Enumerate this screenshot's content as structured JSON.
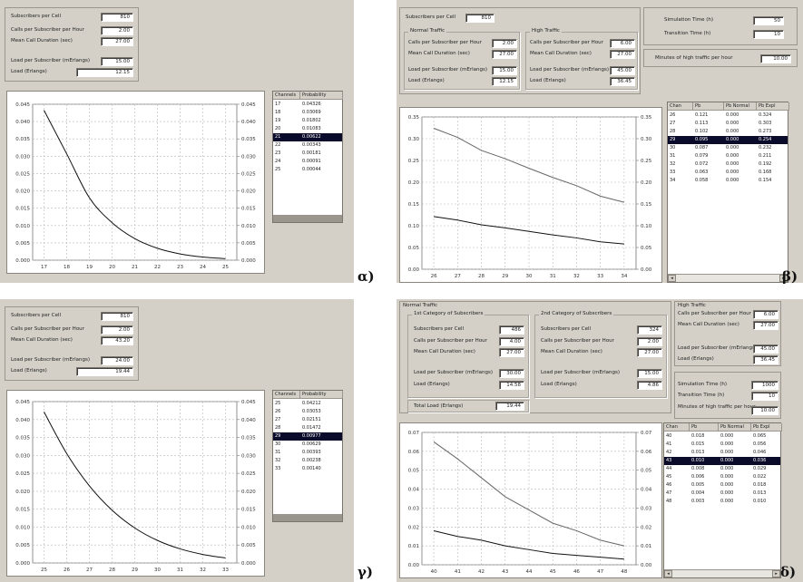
{
  "panels": {
    "a": {
      "label": "α)",
      "fields": [
        {
          "label": "Subscribers per Cell",
          "value": "810"
        },
        {
          "label": "Calls per Subscriber per Hour",
          "value": "2.00"
        },
        {
          "label": "Mean Call Duration (sec)",
          "value": "27.00"
        },
        {
          "label": "Load per Subscriber (mErlangs)",
          "value": "15.00"
        },
        {
          "label": "Load (Erlangs)",
          "value": "12.15"
        }
      ],
      "table": {
        "headers": [
          "Channels",
          "Probability"
        ],
        "rows": [
          [
            "17",
            "0.04326"
          ],
          [
            "18",
            "0.03069"
          ],
          [
            "19",
            "0.01802"
          ],
          [
            "20",
            "0.01083"
          ],
          [
            "21",
            "0.00622"
          ],
          [
            "22",
            "0.00343"
          ],
          [
            "23",
            "0.00181"
          ],
          [
            "24",
            "0.00091"
          ],
          [
            "25",
            "0.00044"
          ]
        ],
        "selected": 4
      },
      "chart_data": {
        "type": "line",
        "x": [
          17,
          18,
          19,
          20,
          21,
          22,
          23,
          24,
          25
        ],
        "series": [
          {
            "values": [
              0.04326,
              0.03069,
              0.01802,
              0.01083,
              0.00622,
              0.00343,
              0.00181,
              0.00091,
              0.00044
            ]
          }
        ],
        "xticks": [
          "17",
          "18",
          "19",
          "20",
          "21",
          "22",
          "23",
          "24",
          "25"
        ],
        "yticks": [
          "0.000",
          "0.005",
          "0.010",
          "0.015",
          "0.020",
          "0.025",
          "0.030",
          "0.035",
          "0.040",
          "0.045"
        ],
        "xlim": [
          16.5,
          25.5
        ],
        "ylim": [
          0,
          0.045
        ],
        "grid": true
      }
    },
    "b": {
      "label": "β)",
      "subscribers": {
        "label": "Subscribers per Cell",
        "value": "810"
      },
      "normal_title": "Normal Traffic",
      "normal": [
        {
          "label": "Calls per Subscriber per Hour",
          "value": "2.00"
        },
        {
          "label": "Mean Call Duration (sec)",
          "value": "27.00"
        },
        {
          "label": "Load per Subscriber (mErlangs)",
          "value": "15.00"
        },
        {
          "label": "Load (Erlangs)",
          "value": "12.15"
        }
      ],
      "high_title": "High Traffic",
      "high": [
        {
          "label": "Calls per Subscriber per Hour",
          "value": "6.00"
        },
        {
          "label": "Mean Call Duration (sec)",
          "value": "27.00"
        },
        {
          "label": "Load per Subscriber (mErlangs)",
          "value": "45.00"
        },
        {
          "label": "Load (Erlangs)",
          "value": "36.45"
        }
      ],
      "sim": [
        {
          "label": "Simulation Time (h)",
          "value": "50"
        },
        {
          "label": "Transition Time (h)",
          "value": "10"
        },
        {
          "label": "Minutes of high traffic per hour",
          "value": "10.00"
        }
      ],
      "table": {
        "headers": [
          "Chan",
          "Pb",
          "Pb Normal",
          "Pb Expl"
        ],
        "rows": [
          [
            "26",
            "0.121",
            "0.000",
            "0.324"
          ],
          [
            "27",
            "0.113",
            "0.000",
            "0.303"
          ],
          [
            "28",
            "0.102",
            "0.000",
            "0.273"
          ],
          [
            "29",
            "0.095",
            "0.000",
            "0.254"
          ],
          [
            "30",
            "0.087",
            "0.000",
            "0.232"
          ],
          [
            "31",
            "0.079",
            "0.000",
            "0.211"
          ],
          [
            "32",
            "0.072",
            "0.000",
            "0.192"
          ],
          [
            "33",
            "0.063",
            "0.000",
            "0.168"
          ],
          [
            "34",
            "0.058",
            "0.000",
            "0.154"
          ]
        ],
        "selected": 3
      },
      "chart_data": {
        "type": "line",
        "x": [
          26,
          27,
          28,
          29,
          30,
          31,
          32,
          33,
          34
        ],
        "series": [
          {
            "values": [
              0.324,
              0.303,
              0.273,
              0.254,
              0.232,
              0.211,
              0.192,
              0.168,
              0.154
            ]
          },
          {
            "values": [
              0.121,
              0.113,
              0.102,
              0.095,
              0.087,
              0.079,
              0.072,
              0.063,
              0.058
            ]
          }
        ],
        "xticks": [
          "26",
          "27",
          "28",
          "29",
          "30",
          "31",
          "32",
          "33",
          "34"
        ],
        "yticks": [
          "0.00",
          "0.05",
          "0.10",
          "0.15",
          "0.20",
          "0.25",
          "0.30",
          "0.35"
        ],
        "xlim": [
          25.5,
          34.5
        ],
        "ylim": [
          0,
          0.35
        ],
        "grid": true
      }
    },
    "c": {
      "label": "γ)",
      "fields": [
        {
          "label": "Subscribers per Cell",
          "value": "810"
        },
        {
          "label": "Calls per Subscriber per Hour",
          "value": "2.00"
        },
        {
          "label": "Mean Call Duration (sec)",
          "value": "43.20"
        },
        {
          "label": "Load per Subscriber (mErlangs)",
          "value": "24.00"
        },
        {
          "label": "Load (Erlangs)",
          "value": "19.44"
        }
      ],
      "table": {
        "headers": [
          "Channels",
          "Probability"
        ],
        "rows": [
          [
            "25",
            "0.04212"
          ],
          [
            "26",
            "0.03053"
          ],
          [
            "27",
            "0.02151"
          ],
          [
            "28",
            "0.01472"
          ],
          [
            "29",
            "0.00977"
          ],
          [
            "30",
            "0.00629"
          ],
          [
            "31",
            "0.00393"
          ],
          [
            "32",
            "0.00238"
          ],
          [
            "33",
            "0.00140"
          ]
        ],
        "selected": 4
      },
      "chart_data": {
        "type": "line",
        "x": [
          25,
          26,
          27,
          28,
          29,
          30,
          31,
          32,
          33
        ],
        "series": [
          {
            "values": [
              0.04212,
              0.03053,
              0.02151,
              0.01472,
              0.00977,
              0.00629,
              0.00393,
              0.00238,
              0.0014
            ]
          }
        ],
        "xticks": [
          "25",
          "26",
          "27",
          "28",
          "29",
          "30",
          "31",
          "32",
          "33"
        ],
        "yticks": [
          "0.000",
          "0.005",
          "0.010",
          "0.015",
          "0.020",
          "0.025",
          "0.030",
          "0.035",
          "0.040",
          "0.045"
        ],
        "xlim": [
          24.5,
          33.5
        ],
        "ylim": [
          0,
          0.045
        ],
        "grid": true
      }
    },
    "d": {
      "label": "δ)",
      "normal_title": "Normal Traffic",
      "cat1_title": "1st Category of Subscribers",
      "cat1": [
        {
          "label": "Subscribers per Cell",
          "value": "486"
        },
        {
          "label": "Calls per Subscriber per Hour",
          "value": "4.00"
        },
        {
          "label": "Mean Call Duration (sec)",
          "value": "27.00"
        },
        {
          "label": "Load per Subscriber (mErlangs)",
          "value": "30.00"
        },
        {
          "label": "Load (Erlangs)",
          "value": "14.58"
        }
      ],
      "cat2_title": "2nd Category of Subscribers",
      "cat2": [
        {
          "label": "Subscribers per Cell",
          "value": "324"
        },
        {
          "label": "Calls per Subscriber per Hour",
          "value": "2.00"
        },
        {
          "label": "Mean Call Duration (sec)",
          "value": "27.00"
        },
        {
          "label": "Load per Subscriber (mErlangs)",
          "value": "15.00"
        },
        {
          "label": "Load (Erlangs)",
          "value": "4.86"
        }
      ],
      "total": {
        "label": "Total Load (Erlangs)",
        "value": "19.44"
      },
      "high_title": "High Traffic",
      "high": [
        {
          "label": "Calls per Subscriber per Hour",
          "value": "6.00"
        },
        {
          "label": "Mean Call Duration (sec)",
          "value": "27.00"
        },
        {
          "label": "Load per Subscriber (mErlangs)",
          "value": "45.00"
        },
        {
          "label": "Load (Erlangs)",
          "value": "36.45"
        }
      ],
      "sim": [
        {
          "label": "Simulation Time (h)",
          "value": "1000"
        },
        {
          "label": "Transition Time (h)",
          "value": "10"
        },
        {
          "label": "Minutes of high traffic per hour",
          "value": "10.00"
        }
      ],
      "table": {
        "headers": [
          "Chan",
          "Pb",
          "Pb Normal",
          "Pb Expl"
        ],
        "rows": [
          [
            "40",
            "0.018",
            "0.000",
            "0.065"
          ],
          [
            "41",
            "0.015",
            "0.000",
            "0.056"
          ],
          [
            "42",
            "0.013",
            "0.000",
            "0.046"
          ],
          [
            "43",
            "0.010",
            "0.000",
            "0.036"
          ],
          [
            "44",
            "0.008",
            "0.000",
            "0.029"
          ],
          [
            "45",
            "0.006",
            "0.000",
            "0.022"
          ],
          [
            "46",
            "0.005",
            "0.000",
            "0.018"
          ],
          [
            "47",
            "0.004",
            "0.000",
            "0.013"
          ],
          [
            "48",
            "0.003",
            "0.000",
            "0.010"
          ]
        ],
        "selected": 3
      },
      "chart_data": {
        "type": "line",
        "x": [
          40,
          41,
          42,
          43,
          44,
          45,
          46,
          47,
          48
        ],
        "series": [
          {
            "values": [
              0.065,
              0.056,
              0.046,
              0.036,
              0.029,
              0.022,
              0.018,
              0.013,
              0.01
            ]
          },
          {
            "values": [
              0.018,
              0.015,
              0.013,
              0.01,
              0.008,
              0.006,
              0.005,
              0.004,
              0.003
            ]
          }
        ],
        "xticks": [
          "40",
          "41",
          "42",
          "43",
          "44",
          "45",
          "46",
          "47",
          "48"
        ],
        "yticks": [
          "0.00",
          "0.01",
          "0.02",
          "0.03",
          "0.04",
          "0.05",
          "0.06",
          "0.07"
        ],
        "xlim": [
          39.5,
          48.5
        ],
        "ylim": [
          0,
          0.07
        ],
        "grid": true
      }
    }
  },
  "colors": {
    "window": "#d4d0c8",
    "line_upper": "#666666",
    "line_lower": "#111111",
    "grid": "#b8b8b8",
    "selection": "#0a0a2a"
  }
}
